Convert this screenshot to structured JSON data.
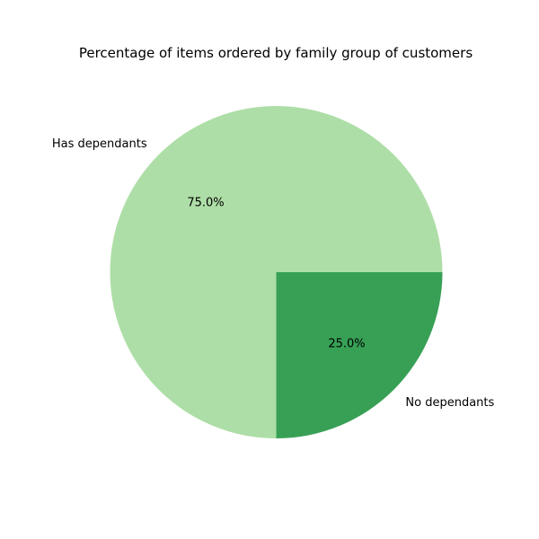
{
  "chart_data": {
    "type": "pie",
    "title": "Percentage of items ordered by family group of customers",
    "slices": [
      {
        "label": "Has dependants",
        "value": 75.0,
        "pct_label": "75.0%",
        "color": "#aedea7"
      },
      {
        "label": "No dependants",
        "value": 25.0,
        "pct_label": "25.0%",
        "color": "#37a055"
      }
    ],
    "start_angle_deg": 0,
    "direction": "counterclockwise",
    "legend": false
  }
}
